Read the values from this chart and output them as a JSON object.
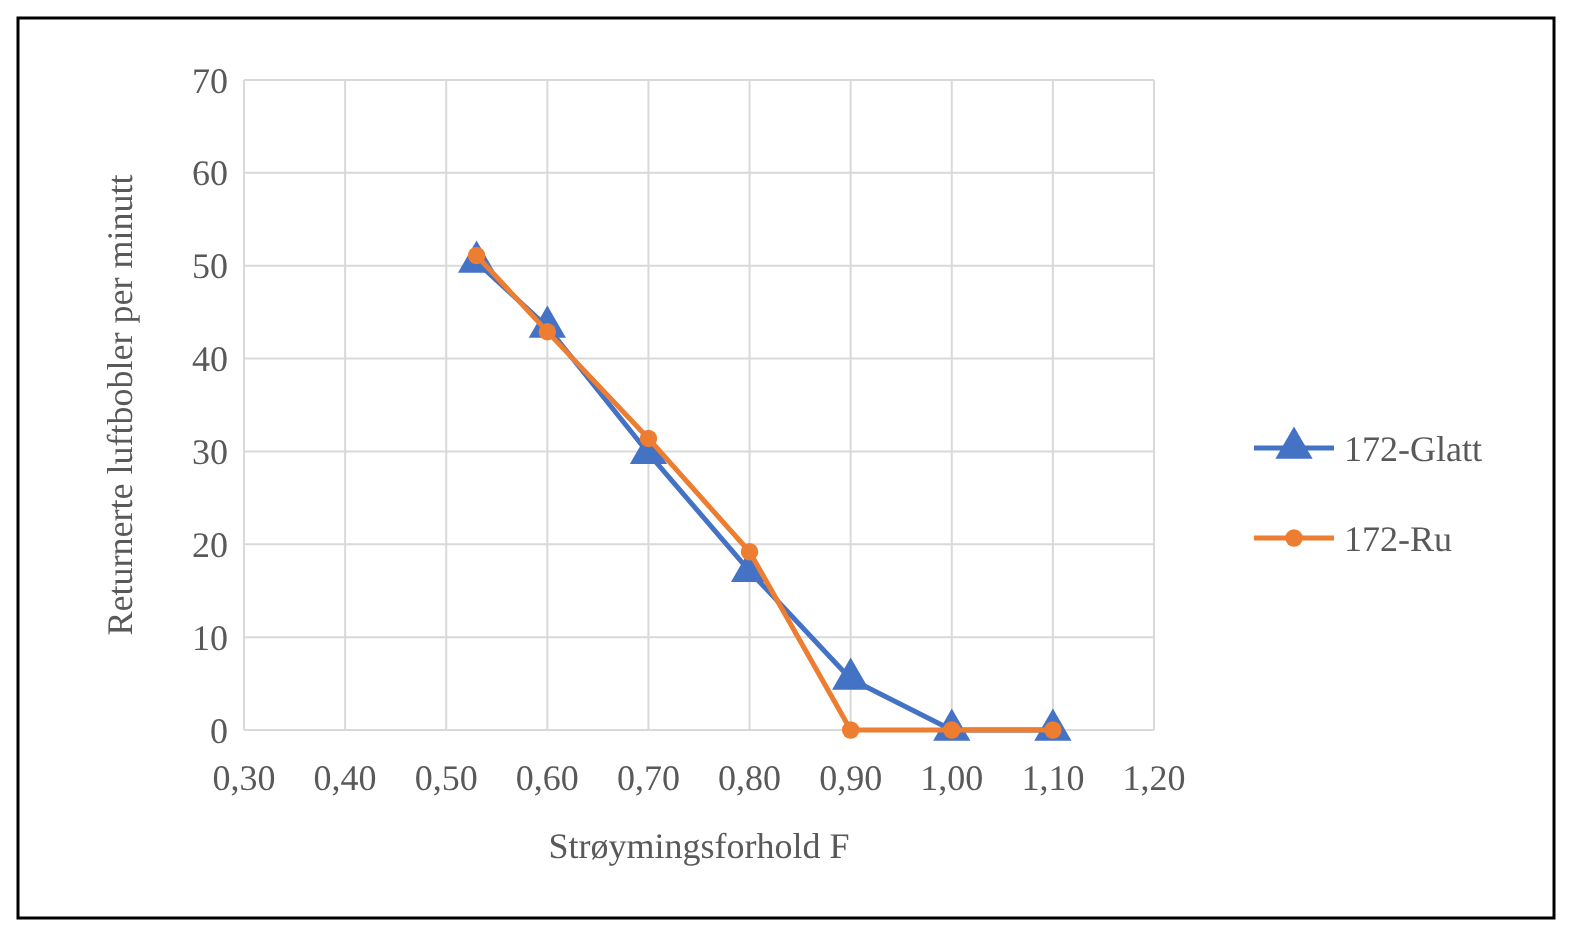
{
  "chart_data": {
    "type": "line",
    "xlabel": "Strøymingsforhold F",
    "ylabel": "Returnerte luftbobler per minutt",
    "xlim": [
      0.3,
      1.2
    ],
    "xticks": [
      {
        "value": 0.3,
        "label": "0,30"
      },
      {
        "value": 0.4,
        "label": "0,40"
      },
      {
        "value": 0.5,
        "label": "0,50"
      },
      {
        "value": 0.6,
        "label": "0,60"
      },
      {
        "value": 0.7,
        "label": "0,70"
      },
      {
        "value": 0.8,
        "label": "0,80"
      },
      {
        "value": 0.9,
        "label": "0,90"
      },
      {
        "value": 1.0,
        "label": "1,00"
      },
      {
        "value": 1.1,
        "label": "1,10"
      },
      {
        "value": 1.2,
        "label": "1,20"
      }
    ],
    "ylim": [
      0,
      70
    ],
    "yticks": [
      0,
      10,
      20,
      30,
      40,
      50,
      60,
      70
    ],
    "grid": true,
    "legend": "right",
    "line_style": "solid",
    "x": [
      0.53,
      0.6,
      0.7,
      0.8,
      0.9,
      1.0,
      1.1
    ],
    "series": [
      {
        "name": "172-Glatt",
        "color": "#4472c4",
        "marker": "triangle",
        "values": [
          50.4,
          43.4,
          29.8,
          17.1,
          5.5,
          0,
          0
        ]
      },
      {
        "name": "172-Ru",
        "color": "#ed7d31",
        "marker": "circle",
        "values": [
          51.1,
          42.9,
          31.4,
          19.2,
          0,
          0,
          0
        ]
      }
    ]
  }
}
